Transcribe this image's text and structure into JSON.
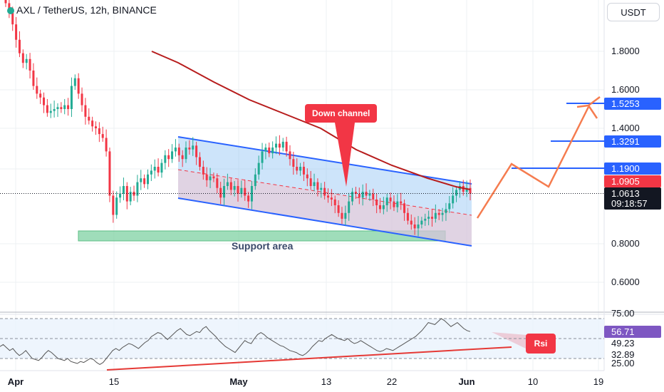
{
  "header": {
    "title": "AXL / TetherUS, 12h, BINANCE",
    "currency_button": "USDT"
  },
  "colors": {
    "up": "#22ab94",
    "down": "#f23645",
    "channel_line": "#2962ff",
    "ma_line": "#b71c1c",
    "projection": "#f57c4f",
    "support_fill": "#7fd1a3",
    "rsi_line": "#555555",
    "rsi_trend": "#e53935"
  },
  "chart_data": [
    {
      "type": "candlestick",
      "y_axis_ticks": [
        "1.8000",
        "1.6000",
        "1.4000",
        "1.1900",
        "0.8000",
        "0.6000"
      ],
      "x_axis_ticks": [
        "Apr",
        "15",
        "May",
        "13",
        "22",
        "Jun",
        "10",
        "19"
      ],
      "price_labels": [
        {
          "value": "1.5253",
          "color": "#2962ff"
        },
        {
          "value": "1.3291",
          "color": "#2962ff"
        },
        {
          "value": "1.1900",
          "color": "#2962ff"
        },
        {
          "value": "1.0905",
          "color": "#f23645"
        },
        {
          "value": "1.0613",
          "color": "#131722"
        },
        {
          "value": "09:18:57",
          "color": "#131722"
        }
      ],
      "last_price": 1.0613,
      "ylim": [
        0.45,
        2.0
      ],
      "annotations": [
        "Down channel",
        "Support area"
      ],
      "close_series": [
        2.05,
        2.0,
        1.94,
        1.86,
        1.79,
        1.74,
        1.76,
        1.7,
        1.62,
        1.58,
        1.56,
        1.52,
        1.48,
        1.49,
        1.5,
        1.51,
        1.5,
        1.52,
        1.5,
        1.62,
        1.66,
        1.58,
        1.52,
        1.46,
        1.44,
        1.41,
        1.4,
        1.37,
        1.35,
        1.28,
        1.05,
        0.95,
        1.04,
        1.06,
        1.1,
        1.02,
        1.07,
        1.05,
        1.12,
        1.14,
        1.11,
        1.16,
        1.18,
        1.2,
        1.17,
        1.22,
        1.26,
        1.24,
        1.28,
        1.3,
        1.26,
        1.24,
        1.3,
        1.29,
        1.31,
        1.25,
        1.2,
        1.16,
        1.13,
        1.15,
        1.14,
        1.09,
        1.04,
        1.1,
        1.12,
        1.08,
        1.1,
        1.06,
        1.09,
        1.05,
        1.02,
        1.1,
        1.16,
        1.22,
        1.28,
        1.3,
        1.27,
        1.3,
        1.32,
        1.3,
        1.33,
        1.28,
        1.24,
        1.2,
        1.18,
        1.2,
        1.16,
        1.14,
        1.1,
        1.12,
        1.08,
        1.09,
        1.05,
        1.04,
        1.03,
        1.0,
        0.96,
        0.93,
        0.96,
        1.02,
        1.07,
        1.06,
        1.04,
        1.07,
        1.05,
        1.06,
        1.03,
        1.0,
        0.98,
        1.0,
        1.04,
        1.02,
        0.99,
        1.02,
        1.01,
        0.96,
        0.92,
        0.9,
        0.88,
        0.9,
        0.92,
        0.93,
        0.94,
        0.93,
        0.96,
        0.95,
        0.96,
        0.98,
        1.01,
        1.05,
        1.08,
        1.1,
        1.07,
        1.09,
        1.06
      ]
    },
    {
      "type": "line",
      "name": "Rsi",
      "y_axis_ticks": [
        "75.00",
        "49.23",
        "32.89",
        "25.00"
      ],
      "rsi_value_label": "56.71",
      "ylim": [
        22,
        78
      ],
      "values": [
        42,
        44,
        41,
        38,
        40,
        36,
        33,
        35,
        38,
        34,
        30,
        29,
        28,
        31,
        35,
        38,
        36,
        33,
        30,
        29,
        28,
        30,
        27,
        26,
        25,
        27,
        26,
        28,
        30,
        29,
        26,
        24,
        26,
        30,
        34,
        38,
        40,
        38,
        41,
        43,
        45,
        44,
        42,
        40,
        43,
        46,
        48,
        52,
        54,
        56,
        55,
        52,
        49,
        52,
        55,
        58,
        60,
        57,
        54,
        53,
        55,
        57,
        56,
        60,
        62,
        58,
        55,
        52,
        48,
        45,
        42,
        40,
        38,
        36,
        40,
        44,
        48,
        46,
        45,
        50,
        54,
        56,
        54,
        51,
        49,
        47,
        45,
        43,
        42,
        40,
        38,
        37,
        36,
        34,
        33,
        35,
        38,
        42,
        45,
        48,
        47,
        50,
        52,
        54,
        52,
        50,
        49,
        48,
        50,
        47,
        45,
        46,
        48,
        46,
        44,
        42,
        40,
        38,
        37,
        38,
        40,
        39,
        38,
        40,
        42,
        44,
        46,
        48,
        50,
        52,
        55,
        58,
        62,
        66,
        65,
        64,
        67,
        70,
        68,
        65,
        62,
        64,
        66,
        63,
        60,
        58,
        57
      ]
    }
  ]
}
